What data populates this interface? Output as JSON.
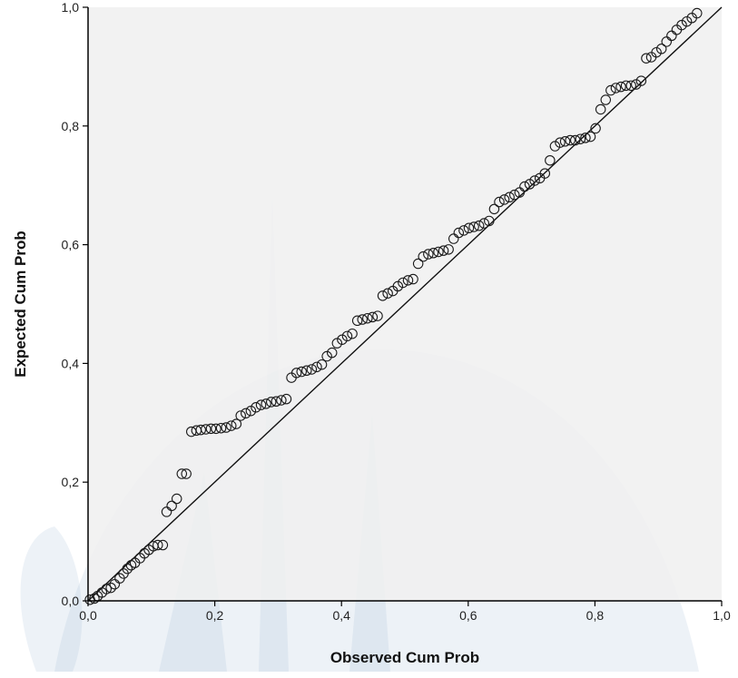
{
  "colors": {
    "plot_background": "#f0f0f0",
    "marker_stroke": "#1a1a1a",
    "reference_line": "#111111",
    "axis": "#000000"
  },
  "chart_data": {
    "type": "scatter",
    "title": "",
    "xlabel": "Observed Cum Prob",
    "ylabel": "Expected Cum Prob",
    "xlim": [
      0,
      1
    ],
    "ylim": [
      0,
      1
    ],
    "x_ticks": [
      "0,0",
      "0,2",
      "0,4",
      "0,6",
      "0,8",
      "1,0"
    ],
    "y_ticks": [
      "0,0",
      "0,2",
      "0,4",
      "0,6",
      "0,8",
      "1,0"
    ],
    "grid": false,
    "legend": "none",
    "reference_line": {
      "x": [
        0,
        1
      ],
      "y": [
        0,
        1
      ]
    },
    "marker": "open-circle",
    "series": [
      {
        "points": [
          [
            0.003,
            0.002
          ],
          [
            0.01,
            0.004
          ],
          [
            0.015,
            0.008
          ],
          [
            0.022,
            0.014
          ],
          [
            0.029,
            0.02
          ],
          [
            0.036,
            0.022
          ],
          [
            0.042,
            0.028
          ],
          [
            0.05,
            0.038
          ],
          [
            0.056,
            0.046
          ],
          [
            0.062,
            0.054
          ],
          [
            0.068,
            0.06
          ],
          [
            0.074,
            0.064
          ],
          [
            0.082,
            0.072
          ],
          [
            0.089,
            0.08
          ],
          [
            0.096,
            0.086
          ],
          [
            0.103,
            0.092
          ],
          [
            0.11,
            0.094
          ],
          [
            0.118,
            0.094
          ],
          [
            0.124,
            0.15
          ],
          [
            0.132,
            0.16
          ],
          [
            0.14,
            0.172
          ],
          [
            0.148,
            0.214
          ],
          [
            0.155,
            0.214
          ],
          [
            0.163,
            0.285
          ],
          [
            0.171,
            0.287
          ],
          [
            0.178,
            0.288
          ],
          [
            0.186,
            0.289
          ],
          [
            0.194,
            0.29
          ],
          [
            0.202,
            0.29
          ],
          [
            0.21,
            0.291
          ],
          [
            0.218,
            0.292
          ],
          [
            0.226,
            0.295
          ],
          [
            0.234,
            0.298
          ],
          [
            0.241,
            0.312
          ],
          [
            0.249,
            0.316
          ],
          [
            0.257,
            0.32
          ],
          [
            0.265,
            0.326
          ],
          [
            0.273,
            0.33
          ],
          [
            0.281,
            0.332
          ],
          [
            0.289,
            0.335
          ],
          [
            0.297,
            0.336
          ],
          [
            0.305,
            0.338
          ],
          [
            0.313,
            0.34
          ],
          [
            0.321,
            0.376
          ],
          [
            0.329,
            0.384
          ],
          [
            0.337,
            0.386
          ],
          [
            0.345,
            0.388
          ],
          [
            0.353,
            0.39
          ],
          [
            0.361,
            0.394
          ],
          [
            0.369,
            0.398
          ],
          [
            0.377,
            0.412
          ],
          [
            0.385,
            0.418
          ],
          [
            0.393,
            0.434
          ],
          [
            0.401,
            0.44
          ],
          [
            0.409,
            0.446
          ],
          [
            0.417,
            0.45
          ],
          [
            0.425,
            0.472
          ],
          [
            0.433,
            0.474
          ],
          [
            0.441,
            0.476
          ],
          [
            0.449,
            0.478
          ],
          [
            0.457,
            0.48
          ],
          [
            0.465,
            0.514
          ],
          [
            0.473,
            0.518
          ],
          [
            0.481,
            0.522
          ],
          [
            0.489,
            0.53
          ],
          [
            0.497,
            0.536
          ],
          [
            0.505,
            0.54
          ],
          [
            0.513,
            0.542
          ],
          [
            0.521,
            0.568
          ],
          [
            0.529,
            0.58
          ],
          [
            0.537,
            0.584
          ],
          [
            0.545,
            0.586
          ],
          [
            0.553,
            0.588
          ],
          [
            0.561,
            0.59
          ],
          [
            0.569,
            0.592
          ],
          [
            0.577,
            0.61
          ],
          [
            0.585,
            0.62
          ],
          [
            0.593,
            0.624
          ],
          [
            0.601,
            0.628
          ],
          [
            0.609,
            0.63
          ],
          [
            0.617,
            0.632
          ],
          [
            0.625,
            0.636
          ],
          [
            0.633,
            0.64
          ],
          [
            0.641,
            0.66
          ],
          [
            0.649,
            0.672
          ],
          [
            0.657,
            0.676
          ],
          [
            0.665,
            0.68
          ],
          [
            0.673,
            0.684
          ],
          [
            0.681,
            0.688
          ],
          [
            0.689,
            0.698
          ],
          [
            0.697,
            0.702
          ],
          [
            0.705,
            0.708
          ],
          [
            0.713,
            0.712
          ],
          [
            0.721,
            0.72
          ],
          [
            0.729,
            0.742
          ],
          [
            0.737,
            0.766
          ],
          [
            0.745,
            0.772
          ],
          [
            0.753,
            0.774
          ],
          [
            0.761,
            0.776
          ],
          [
            0.769,
            0.776
          ],
          [
            0.777,
            0.778
          ],
          [
            0.785,
            0.78
          ],
          [
            0.793,
            0.782
          ],
          [
            0.801,
            0.796
          ],
          [
            0.809,
            0.828
          ],
          [
            0.817,
            0.844
          ],
          [
            0.825,
            0.86
          ],
          [
            0.833,
            0.864
          ],
          [
            0.841,
            0.866
          ],
          [
            0.849,
            0.868
          ],
          [
            0.857,
            0.868
          ],
          [
            0.865,
            0.87
          ],
          [
            0.873,
            0.876
          ],
          [
            0.881,
            0.914
          ],
          [
            0.889,
            0.916
          ],
          [
            0.897,
            0.924
          ],
          [
            0.905,
            0.93
          ],
          [
            0.913,
            0.942
          ],
          [
            0.921,
            0.952
          ],
          [
            0.929,
            0.962
          ],
          [
            0.937,
            0.97
          ],
          [
            0.945,
            0.976
          ],
          [
            0.953,
            0.982
          ],
          [
            0.961,
            0.99
          ]
        ]
      }
    ]
  }
}
